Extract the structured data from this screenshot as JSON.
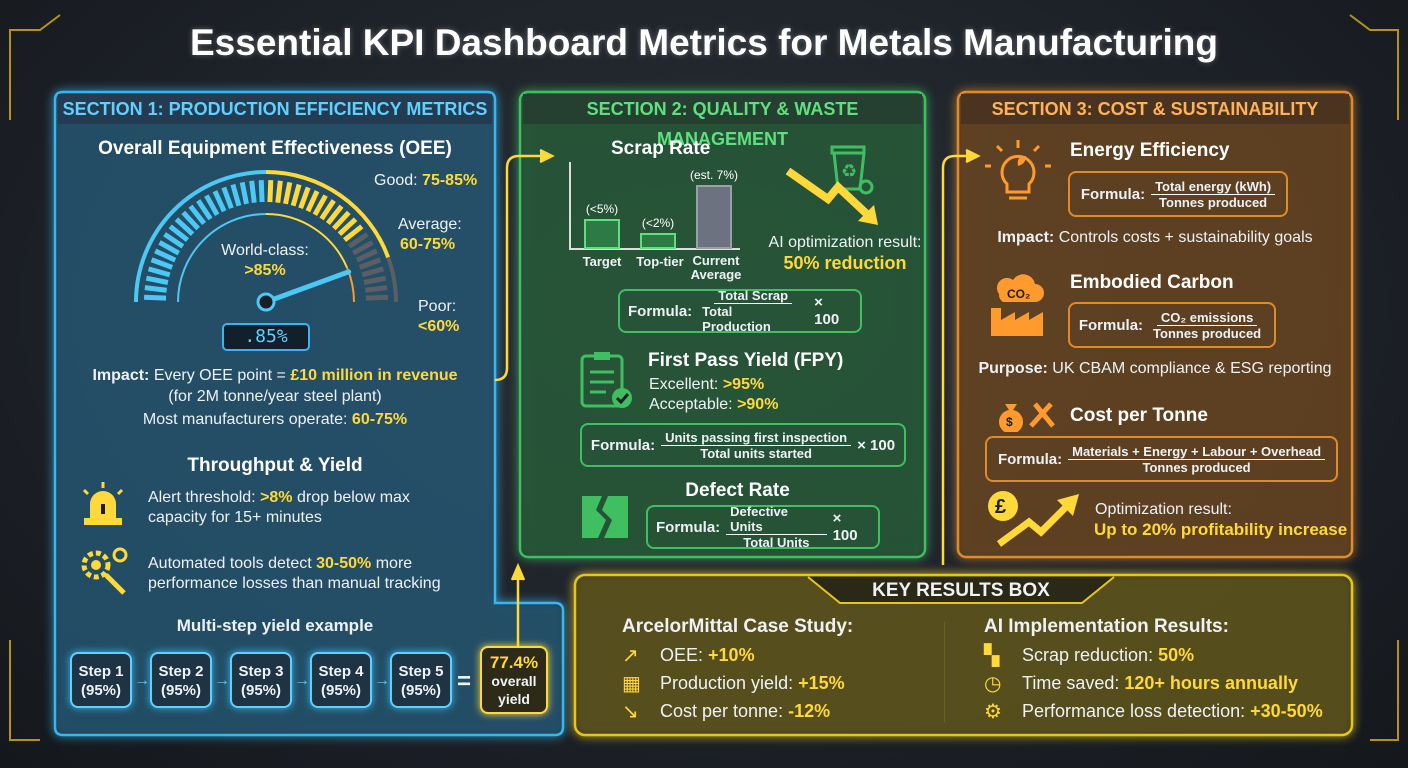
{
  "title": "Essential KPI Dashboard Metrics for Metals Manufacturing",
  "colors": {
    "section1": "#38b6f0",
    "section2": "#3fbf62",
    "section3": "#e08a2a",
    "highlight": "#ffd83a",
    "key_results": "#e6c51c"
  },
  "section1": {
    "header": "SECTION 1: PRODUCTION EFFICIENCY METRICS",
    "oee": {
      "title": "Overall Equipment Effectiveness (OEE)",
      "good_label": "Good:",
      "good_value": "75-85%",
      "average_label": "Average:",
      "average_value": "60-75%",
      "poor_label": "Poor:",
      "poor_value": "<60%",
      "world_class_label": "World-class:",
      "world_class_value": ">85%",
      "display": ".85%",
      "impact_label": "Impact:",
      "impact_text": "Every OEE point =",
      "impact_value": "£10 million in revenue",
      "impact_note": "(for 2M tonne/year steel plant)",
      "most_label": "Most manufacturers operate:",
      "most_value": "60-75%"
    },
    "throughput": {
      "title": "Throughput & Yield",
      "alert_text_a": "Alert threshold:",
      "alert_value": ">8%",
      "alert_text_b": "drop below max",
      "alert_text_c": "capacity for 15+ minutes",
      "tools_text_a": "Automated tools detect",
      "tools_value": "30-50%",
      "tools_text_b": "more",
      "tools_text_c": "performance losses than manual tracking",
      "icons": [
        "alarm-light-icon",
        "gear-search-icon"
      ]
    },
    "multistep": {
      "title": "Multi-step yield example",
      "steps": [
        {
          "label": "Step 1",
          "value": "(95%)"
        },
        {
          "label": "Step 2",
          "value": "(95%)"
        },
        {
          "label": "Step 3",
          "value": "(95%)"
        },
        {
          "label": "Step 4",
          "value": "(95%)"
        },
        {
          "label": "Step 5",
          "value": "(95%)"
        }
      ],
      "equals": "=",
      "result_value": "77.4%",
      "result_line1": "overall",
      "result_line2": "yield"
    }
  },
  "section2": {
    "header": "SECTION 2: QUALITY & WASTE MANAGEMENT",
    "scrap": {
      "title": "Scrap Rate",
      "bars": [
        {
          "label": "Target",
          "value_label": "(<5%)",
          "value": 5
        },
        {
          "label": "Top-tier",
          "value_label": "(<2%)",
          "value": 2
        },
        {
          "label_line1": "Current",
          "label_line2": "Average",
          "value_label": "(est. 7%)",
          "value": 7
        }
      ],
      "ai_text": "AI optimization result:",
      "ai_value": "50% reduction",
      "formula_label": "Formula:",
      "numerator": "Total Scrap",
      "denominator": "Total Production",
      "multiplier": "× 100"
    },
    "fpy": {
      "title": "First Pass Yield (FPY)",
      "excellent_label": "Excellent:",
      "excellent_value": ">95%",
      "acceptable_label": "Acceptable:",
      "acceptable_value": ">90%",
      "formula_label": "Formula:",
      "numerator": "Units passing first inspection",
      "denominator": "Total units started",
      "multiplier": "× 100"
    },
    "defect": {
      "title": "Defect Rate",
      "formula_label": "Formula:",
      "numerator": "Defective Units",
      "denominator": "Total Units",
      "multiplier": "× 100"
    }
  },
  "section3": {
    "header": "SECTION 3: COST & SUSTAINABILITY",
    "energy": {
      "title": "Energy Efficiency",
      "formula_label": "Formula:",
      "numerator": "Total energy (kWh)",
      "denominator": "Tonnes produced",
      "impact_label": "Impact:",
      "impact_text": "Controls costs + sustainability goals"
    },
    "carbon": {
      "title": "Embodied Carbon",
      "formula_label": "Formula:",
      "numerator": "CO₂ emissions",
      "denominator": "Tonnes produced",
      "purpose_label": "Purpose:",
      "purpose_text": "UK CBAM compliance & ESG reporting",
      "icon_text": "CO₂"
    },
    "cost": {
      "title": "Cost per Tonne",
      "formula_label": "Formula:",
      "numerator": "Materials + Energy + Labour + Overhead",
      "denominator": "Tonnes produced",
      "opt_text": "Optimization result:",
      "opt_value": "Up to 20% profitability increase",
      "pound_symbol": "£"
    }
  },
  "key_results": {
    "header": "KEY RESULTS BOX",
    "left_title": "ArcelorMittal Case Study:",
    "left_items": [
      {
        "label": "OEE:",
        "value": "+10%",
        "icon": "trend-up-icon"
      },
      {
        "label": "Production yield:",
        "value": "+15%",
        "icon": "stacked-barrels-icon"
      },
      {
        "label": "Cost per tonne:",
        "value": "-12%",
        "icon": "trend-down-icon"
      }
    ],
    "right_title": "AI Implementation Results:",
    "right_items": [
      {
        "label": "Scrap reduction:",
        "value": "50%",
        "icon": "broken-block-icon"
      },
      {
        "label": "Time saved:",
        "value": "120+ hours annually",
        "icon": "clock-icon"
      },
      {
        "label": "Performance loss detection:",
        "value": "+30-50%",
        "icon": "magnifier-gear-icon"
      }
    ]
  }
}
